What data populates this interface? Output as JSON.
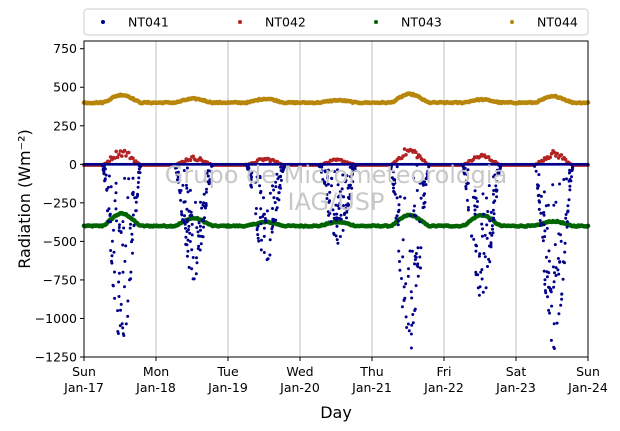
{
  "chart_data": {
    "type": "scatter",
    "xlabel": "Day",
    "ylabel": "Radiation",
    "ylabel_unit": "(Wm⁻²)",
    "ylim": [
      -1250,
      800
    ],
    "xlim": [
      "2016-01-17",
      "2016-01-24"
    ],
    "yticks": [
      -1250,
      -1000,
      -750,
      -500,
      -250,
      0,
      250,
      500,
      750
    ],
    "yticklabels": [
      "−1250",
      "−1000",
      "−750",
      "−500",
      "−250",
      "0",
      "250",
      "500",
      "750"
    ],
    "xticks": [
      {
        "day": "Sun",
        "date": "Jan-17"
      },
      {
        "day": "Mon",
        "date": "Jan-18"
      },
      {
        "day": "Tue",
        "date": "Jan-19"
      },
      {
        "day": "Wed",
        "date": "Jan-20"
      },
      {
        "day": "Thu",
        "date": "Jan-21"
      },
      {
        "day": "Fri",
        "date": "Jan-22"
      },
      {
        "day": "Sat",
        "date": "Jan-23"
      },
      {
        "day": "Sun",
        "date": "Jan-24"
      }
    ],
    "grid": "vertical",
    "legend_position": "top, outside, single row",
    "watermark": [
      "Grupo de Micrometeorologia",
      "IAG/USP"
    ],
    "series": [
      {
        "name": "NT041",
        "color": "#00008b",
        "daily_peak_min": [
          -1200,
          -750,
          -650,
          -520,
          -1250,
          -900,
          -1200
        ],
        "night_value": 0
      },
      {
        "name": "NT042",
        "color": "#b22222",
        "daily_peak_max": [
          110,
          60,
          50,
          40,
          120,
          75,
          95
        ],
        "night_value": -5
      },
      {
        "name": "NT043",
        "color": "#006400",
        "baseline": -400,
        "daily_peak_max": [
          -320,
          -350,
          -375,
          -375,
          -330,
          -330,
          -370
        ]
      },
      {
        "name": "NT044",
        "color": "#b8860b",
        "baseline": 400,
        "daily_peak_max": [
          450,
          425,
          425,
          415,
          455,
          420,
          440
        ]
      }
    ]
  }
}
